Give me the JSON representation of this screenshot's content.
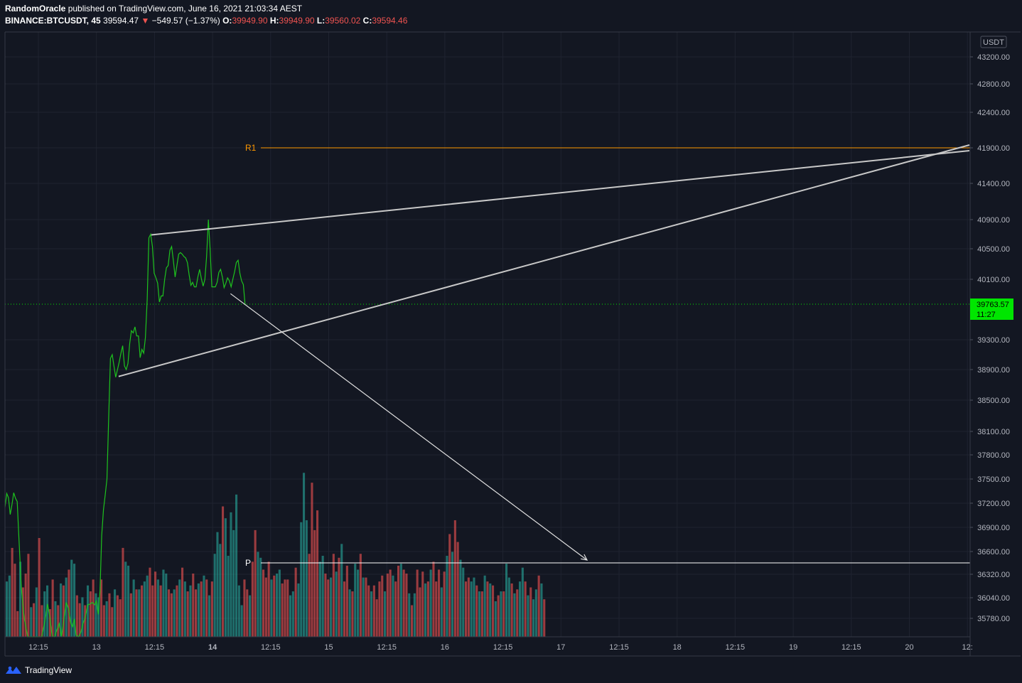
{
  "header": {
    "author": "RandomOracle",
    "published": "published on TradingView.com, June 16, 2021 21:03:34 AEST",
    "symbol": "BINANCE:BTCUSDT, 45",
    "last": "39594.47",
    "change": "−549.57 (−1.37%)",
    "o_label": "O:",
    "o_val": "39949.90",
    "h_label": "H:",
    "h_val": "39949.90",
    "l_label": "L:",
    "l_val": "39560.02",
    "c_label": "C:",
    "c_val": "39594.46"
  },
  "footer": {
    "brand": "TradingView",
    "logo_icon": "tradingview-logo-icon"
  },
  "chart_data": {
    "type": "line",
    "currency_badge": "USDT",
    "price_ticks": [
      "43200.00",
      "42800.00",
      "42400.00",
      "41900.00",
      "41400.00",
      "40900.00",
      "40500.00",
      "40100.00",
      "39300.00",
      "38900.00",
      "38500.00",
      "38100.00",
      "37800.00",
      "37500.00",
      "37200.00",
      "36900.00",
      "36600.00",
      "36320.00",
      "36040.00",
      "35780.00"
    ],
    "time_ticks": [
      "12:15",
      "13",
      "12:15",
      "14",
      "12:15",
      "15",
      "12:15",
      "16",
      "12:15",
      "17",
      "12:15",
      "18",
      "12:15",
      "19",
      "12:15",
      "20",
      "12:"
    ],
    "last_price_label": {
      "price": "39763.57",
      "countdown": "11:27",
      "color": "#00e600"
    },
    "level_r1": {
      "label": "R1",
      "color": "#ff9800",
      "price": 41900
    },
    "level_p": {
      "label": "P",
      "color": "#ffffff",
      "price": 36460
    },
    "line_color": "#1ec31e",
    "price_series": [
      [
        0,
        37150
      ],
      [
        0.3,
        37320
      ],
      [
        0.6,
        37270
      ],
      [
        0.9,
        37060
      ],
      [
        1.2,
        37180
      ],
      [
        1.5,
        37330
      ],
      [
        1.8,
        37260
      ],
      [
        2.1,
        37220
      ],
      [
        2.4,
        36750
      ],
      [
        2.8,
        36160
      ],
      [
        3.3,
        35780
      ],
      [
        3.9,
        35100
      ],
      [
        4.5,
        34800
      ],
      [
        5.1,
        34600
      ],
      [
        5.7,
        34800
      ],
      [
        6.3,
        35300
      ],
      [
        6.9,
        35760
      ],
      [
        7.3,
        35960
      ],
      [
        7.7,
        35800
      ],
      [
        8.1,
        35500
      ],
      [
        8.5,
        35400
      ],
      [
        8.9,
        35600
      ],
      [
        9.3,
        35700
      ],
      [
        9.7,
        35500
      ],
      [
        10.1,
        35750
      ],
      [
        10.5,
        35980
      ],
      [
        10.9,
        35900
      ],
      [
        11.3,
        35700
      ],
      [
        11.6,
        35650
      ],
      [
        11.9,
        35770
      ],
      [
        12.2,
        35520
      ],
      [
        12.6,
        35380
      ],
      [
        13.0,
        35560
      ],
      [
        13.4,
        35700
      ],
      [
        13.8,
        35800
      ],
      [
        14.2,
        35950
      ],
      [
        14.6,
        35960
      ],
      [
        15.0,
        35980
      ],
      [
        15.4,
        35950
      ],
      [
        15.7,
        36000
      ],
      [
        16.0,
        35830
      ],
      [
        16.3,
        36120
      ],
      [
        16.6,
        36800
      ],
      [
        16.9,
        37120
      ],
      [
        17.2,
        37300
      ],
      [
        17.5,
        37500
      ],
      [
        17.8,
        38300
      ],
      [
        18.1,
        39050
      ],
      [
        18.4,
        39100
      ],
      [
        18.7,
        38950
      ],
      [
        19.0,
        38800
      ],
      [
        19.3,
        38900
      ],
      [
        19.6,
        39000
      ],
      [
        19.9,
        39120
      ],
      [
        20.2,
        39220
      ],
      [
        20.5,
        38950
      ],
      [
        20.8,
        38900
      ],
      [
        21.1,
        38980
      ],
      [
        21.4,
        39250
      ],
      [
        21.7,
        39420
      ],
      [
        22.0,
        39390
      ],
      [
        22.3,
        39470
      ],
      [
        22.6,
        39350
      ],
      [
        22.9,
        39350
      ],
      [
        23.2,
        39060
      ],
      [
        23.5,
        39170
      ],
      [
        23.8,
        39120
      ],
      [
        24.1,
        39330
      ],
      [
        24.4,
        39830
      ],
      [
        24.7,
        40650
      ],
      [
        25.0,
        40700
      ],
      [
        25.3,
        40530
      ],
      [
        25.6,
        40180
      ],
      [
        25.9,
        40120
      ],
      [
        26.2,
        40050
      ],
      [
        26.5,
        39800
      ],
      [
        26.8,
        39880
      ],
      [
        27.1,
        39880
      ],
      [
        27.4,
        40100
      ],
      [
        27.7,
        40250
      ],
      [
        28.0,
        40280
      ],
      [
        28.3,
        40480
      ],
      [
        28.6,
        40530
      ],
      [
        28.9,
        40340
      ],
      [
        29.2,
        40130
      ],
      [
        29.5,
        40280
      ],
      [
        29.8,
        40430
      ],
      [
        30.1,
        40450
      ],
      [
        30.4,
        40430
      ],
      [
        30.7,
        40400
      ],
      [
        31.0,
        40380
      ],
      [
        31.3,
        40320
      ],
      [
        31.6,
        40160
      ],
      [
        31.9,
        40020
      ],
      [
        32.2,
        40060
      ],
      [
        32.5,
        40000
      ],
      [
        32.8,
        40000
      ],
      [
        33.1,
        40130
      ],
      [
        33.4,
        40230
      ],
      [
        33.7,
        40110
      ],
      [
        34.0,
        40010
      ],
      [
        34.3,
        40100
      ],
      [
        34.6,
        40400
      ],
      [
        34.9,
        40900
      ],
      [
        35.2,
        40500
      ],
      [
        35.5,
        40000
      ],
      [
        35.8,
        40000
      ],
      [
        36.1,
        40000
      ],
      [
        36.4,
        40060
      ],
      [
        36.7,
        40190
      ],
      [
        37.0,
        40230
      ],
      [
        37.3,
        40130
      ],
      [
        37.6,
        39990
      ],
      [
        37.9,
        40050
      ],
      [
        38.2,
        40120
      ],
      [
        38.5,
        40080
      ],
      [
        38.8,
        40000
      ],
      [
        39.1,
        40100
      ],
      [
        39.4,
        40200
      ],
      [
        39.7,
        40320
      ],
      [
        40.0,
        40350
      ],
      [
        40.3,
        40180
      ],
      [
        40.6,
        40080
      ],
      [
        40.9,
        40030
      ],
      [
        41.2,
        39770
      ]
    ],
    "trendlines": [
      {
        "name": "wedge-upper",
        "from": [
          25.1,
          40690
        ],
        "to": [
          74.7,
          41820
        ],
        "color": "#c8c8c8"
      },
      {
        "name": "wedge-lower",
        "from": [
          19.5,
          38810
        ],
        "to": [
          74.7,
          41960
        ],
        "color": "#c8c8c8"
      },
      {
        "name": "projection-arrow",
        "from": [
          38.7,
          39910
        ],
        "to": [
          45.2,
          36460
        ],
        "color": "#e0e0e0"
      }
    ],
    "volume_series": [
      [
        0,
        28,
        "u"
      ],
      [
        1,
        31,
        "u"
      ],
      [
        2,
        45,
        "d"
      ],
      [
        3,
        37,
        "d"
      ],
      [
        4,
        13,
        "d"
      ],
      [
        5,
        38,
        "u"
      ],
      [
        6,
        25,
        "d"
      ],
      [
        7,
        32,
        "d"
      ],
      [
        8,
        42,
        "d"
      ],
      [
        9,
        15,
        "u"
      ],
      [
        10,
        17,
        "d"
      ],
      [
        11,
        25,
        "u"
      ],
      [
        12,
        50,
        "d"
      ],
      [
        13,
        16,
        "d"
      ],
      [
        14,
        23,
        "u"
      ],
      [
        15,
        26,
        "u"
      ],
      [
        16,
        14,
        "d"
      ],
      [
        17,
        29,
        "d"
      ],
      [
        18,
        18,
        "u"
      ],
      [
        19,
        16,
        "d"
      ],
      [
        20,
        27,
        "u"
      ],
      [
        21,
        26,
        "d"
      ],
      [
        22,
        30,
        "u"
      ],
      [
        23,
        34,
        "d"
      ],
      [
        24,
        39,
        "u"
      ],
      [
        25,
        37,
        "u"
      ],
      [
        26,
        21,
        "d"
      ],
      [
        27,
        17,
        "d"
      ],
      [
        28,
        20,
        "u"
      ],
      [
        29,
        16,
        "d"
      ],
      [
        30,
        26,
        "u"
      ],
      [
        31,
        23,
        "d"
      ],
      [
        32,
        29,
        "d"
      ],
      [
        33,
        22,
        "u"
      ],
      [
        34,
        20,
        "u"
      ],
      [
        35,
        29,
        "d"
      ],
      [
        36,
        16,
        "d"
      ],
      [
        37,
        18,
        "u"
      ],
      [
        38,
        22,
        "d"
      ],
      [
        39,
        15,
        "d"
      ],
      [
        40,
        24,
        "u"
      ],
      [
        41,
        21,
        "d"
      ],
      [
        42,
        19,
        "d"
      ],
      [
        43,
        45,
        "d"
      ],
      [
        44,
        38,
        "u"
      ],
      [
        45,
        36,
        "u"
      ],
      [
        46,
        22,
        "d"
      ],
      [
        47,
        29,
        "u"
      ],
      [
        48,
        24,
        "d"
      ],
      [
        49,
        24,
        "u"
      ],
      [
        50,
        26,
        "d"
      ],
      [
        51,
        28,
        "u"
      ],
      [
        52,
        31,
        "u"
      ],
      [
        53,
        35,
        "d"
      ],
      [
        54,
        26,
        "d"
      ],
      [
        55,
        33,
        "d"
      ],
      [
        56,
        29,
        "u"
      ],
      [
        57,
        26,
        "d"
      ],
      [
        58,
        34,
        "u"
      ],
      [
        59,
        32,
        "u"
      ],
      [
        60,
        24,
        "d"
      ],
      [
        61,
        22,
        "d"
      ],
      [
        62,
        24,
        "u"
      ],
      [
        63,
        26,
        "d"
      ],
      [
        64,
        29,
        "u"
      ],
      [
        65,
        35,
        "d"
      ],
      [
        66,
        28,
        "u"
      ],
      [
        67,
        23,
        "d"
      ],
      [
        68,
        26,
        "u"
      ],
      [
        69,
        32,
        "d"
      ],
      [
        70,
        24,
        "d"
      ],
      [
        71,
        27,
        "u"
      ],
      [
        72,
        28,
        "d"
      ],
      [
        73,
        31,
        "u"
      ],
      [
        74,
        29,
        "d"
      ],
      [
        75,
        21,
        "u"
      ],
      [
        76,
        28,
        "d"
      ],
      [
        77,
        42,
        "u"
      ],
      [
        78,
        53,
        "u"
      ],
      [
        79,
        47,
        "u"
      ],
      [
        80,
        66,
        "d"
      ],
      [
        81,
        60,
        "u"
      ],
      [
        82,
        41,
        "u"
      ],
      [
        83,
        63,
        "u"
      ],
      [
        84,
        54,
        "u"
      ],
      [
        85,
        72,
        "u"
      ],
      [
        86,
        26,
        "u"
      ],
      [
        87,
        16,
        "u"
      ],
      [
        88,
        29,
        "d"
      ],
      [
        89,
        24,
        "d"
      ],
      [
        90,
        21,
        "u"
      ],
      [
        91,
        38,
        "d"
      ],
      [
        92,
        54,
        "d"
      ],
      [
        93,
        43,
        "u"
      ],
      [
        94,
        40,
        "u"
      ],
      [
        95,
        34,
        "d"
      ],
      [
        96,
        30,
        "d"
      ],
      [
        97,
        38,
        "d"
      ],
      [
        98,
        29,
        "u"
      ],
      [
        99,
        31,
        "d"
      ],
      [
        100,
        32,
        "u"
      ],
      [
        101,
        34,
        "u"
      ],
      [
        102,
        27,
        "d"
      ],
      [
        103,
        29,
        "d"
      ],
      [
        104,
        29,
        "d"
      ],
      [
        105,
        21,
        "u"
      ],
      [
        106,
        23,
        "u"
      ],
      [
        107,
        35,
        "d"
      ],
      [
        108,
        27,
        "u"
      ],
      [
        109,
        58,
        "u"
      ],
      [
        110,
        83,
        "u"
      ],
      [
        111,
        59,
        "u"
      ],
      [
        112,
        42,
        "d"
      ],
      [
        113,
        78,
        "d"
      ],
      [
        114,
        54,
        "d"
      ],
      [
        115,
        64,
        "d"
      ],
      [
        116,
        38,
        "u"
      ],
      [
        117,
        41,
        "u"
      ],
      [
        118,
        32,
        "d"
      ],
      [
        119,
        29,
        "d"
      ],
      [
        120,
        30,
        "u"
      ],
      [
        121,
        42,
        "d"
      ],
      [
        122,
        33,
        "u"
      ],
      [
        123,
        40,
        "d"
      ],
      [
        124,
        47,
        "u"
      ],
      [
        125,
        28,
        "d"
      ],
      [
        126,
        36,
        "d"
      ],
      [
        127,
        24,
        "u"
      ],
      [
        128,
        23,
        "d"
      ],
      [
        129,
        37,
        "u"
      ],
      [
        130,
        34,
        "u"
      ],
      [
        131,
        42,
        "d"
      ],
      [
        132,
        30,
        "u"
      ],
      [
        133,
        30,
        "d"
      ],
      [
        134,
        26,
        "d"
      ],
      [
        135,
        23,
        "u"
      ],
      [
        136,
        26,
        "d"
      ],
      [
        137,
        19,
        "d"
      ],
      [
        138,
        28,
        "d"
      ],
      [
        139,
        31,
        "d"
      ],
      [
        140,
        23,
        "u"
      ],
      [
        141,
        32,
        "d"
      ],
      [
        142,
        34,
        "d"
      ],
      [
        143,
        31,
        "u"
      ],
      [
        144,
        28,
        "d"
      ],
      [
        145,
        36,
        "d"
      ],
      [
        146,
        37,
        "u"
      ],
      [
        147,
        34,
        "d"
      ],
      [
        148,
        32,
        "d"
      ],
      [
        149,
        22,
        "u"
      ],
      [
        150,
        16,
        "d"
      ],
      [
        151,
        22,
        "u"
      ],
      [
        152,
        34,
        "d"
      ],
      [
        153,
        25,
        "d"
      ],
      [
        154,
        33,
        "d"
      ],
      [
        155,
        27,
        "u"
      ],
      [
        156,
        28,
        "d"
      ],
      [
        157,
        34,
        "u"
      ],
      [
        158,
        38,
        "d"
      ],
      [
        159,
        28,
        "d"
      ],
      [
        160,
        34,
        "d"
      ],
      [
        161,
        25,
        "u"
      ],
      [
        162,
        33,
        "d"
      ],
      [
        163,
        41,
        "u"
      ],
      [
        164,
        52,
        "d"
      ],
      [
        165,
        43,
        "u"
      ],
      [
        166,
        59,
        "d"
      ],
      [
        167,
        48,
        "d"
      ],
      [
        168,
        39,
        "u"
      ],
      [
        169,
        35,
        "u"
      ],
      [
        170,
        28,
        "d"
      ],
      [
        171,
        30,
        "d"
      ],
      [
        172,
        28,
        "u"
      ],
      [
        173,
        30,
        "u"
      ],
      [
        174,
        26,
        "d"
      ],
      [
        175,
        23,
        "u"
      ],
      [
        176,
        23,
        "d"
      ],
      [
        177,
        31,
        "u"
      ],
      [
        178,
        28,
        "d"
      ],
      [
        179,
        27,
        "u"
      ],
      [
        180,
        26,
        "d"
      ],
      [
        181,
        18,
        "u"
      ],
      [
        182,
        21,
        "d"
      ],
      [
        183,
        23,
        "u"
      ],
      [
        184,
        23,
        "d"
      ],
      [
        185,
        37,
        "u"
      ],
      [
        186,
        30,
        "u"
      ],
      [
        187,
        27,
        "d"
      ],
      [
        188,
        22,
        "u"
      ],
      [
        189,
        24,
        "d"
      ],
      [
        190,
        28,
        "u"
      ],
      [
        191,
        35,
        "u"
      ],
      [
        192,
        28,
        "d"
      ],
      [
        193,
        21,
        "u"
      ],
      [
        194,
        25,
        "d"
      ],
      [
        195,
        19,
        "u"
      ],
      [
        196,
        24,
        "u"
      ],
      [
        197,
        31,
        "d"
      ],
      [
        198,
        27,
        "u"
      ],
      [
        199,
        19,
        "d"
      ]
    ],
    "colors": {
      "up": "#26a69a",
      "down": "#ef5350"
    }
  }
}
